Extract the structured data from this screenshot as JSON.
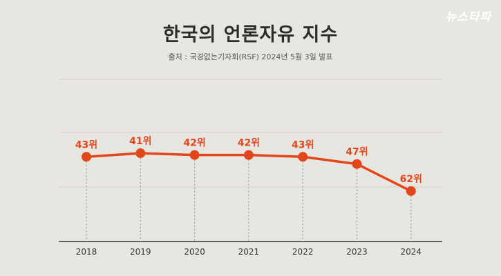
{
  "header": {
    "title": "한국의 언론자유 지수",
    "source": "출처 : 국경없는기자회(RSF) 2024년 5월 3일 발표",
    "logo": "뉴스타파"
  },
  "colors": {
    "line": "#e2461b",
    "background": "#e8e6e1",
    "gridline": "#d6d3cd",
    "axis": "#333333"
  },
  "chart_data": {
    "type": "line",
    "title": "한국의 언론자유 지수",
    "categories": [
      "2018",
      "2019",
      "2020",
      "2021",
      "2022",
      "2023",
      "2024"
    ],
    "series": [
      {
        "values": [
          43,
          41,
          42,
          42,
          43,
          47,
          62
        ],
        "labels": [
          "43위",
          "41위",
          "42위",
          "42위",
          "43위",
          "47위",
          "62위"
        ]
      }
    ],
    "ylim": [
      90,
      0
    ],
    "y_inverted": true,
    "grid": true,
    "legend": "none"
  }
}
